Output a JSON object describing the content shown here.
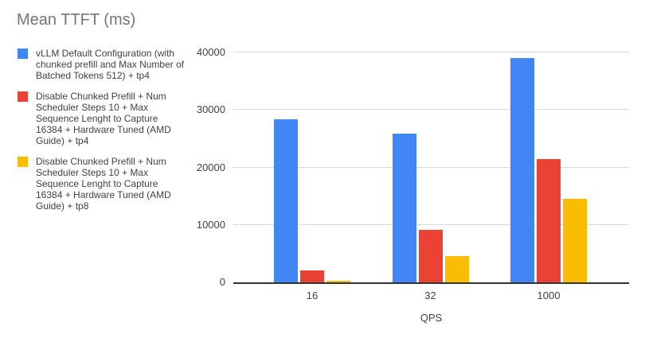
{
  "chart_data": {
    "type": "bar",
    "title": "Mean TTFT (ms)",
    "xlabel": "QPS",
    "ylabel": "",
    "categories": [
      "16",
      "32",
      "1000"
    ],
    "series": [
      {
        "name": "vLLM Default Configuration (with chunked prefill and Max Number of Batched Tokens 512) + tp4",
        "color": "#4285F4",
        "values": [
          28400,
          25900,
          39000
        ]
      },
      {
        "name": "Disable Chunked Prefill + Num Scheduler Steps 10 + Max Sequence Lenght to Capture 16384 + Hardware Tuned (AMD Guide) + tp4",
        "color": "#EA4335",
        "values": [
          2100,
          9200,
          21500
        ]
      },
      {
        "name": "Disable Chunked Prefill + Num Scheduler Steps 10 + Max Sequence Lenght to Capture 16384 + Hardware Tuned (AMD Guide) + tp8",
        "color": "#FBBC04",
        "values": [
          250,
          4600,
          14500
        ]
      }
    ],
    "ylim": [
      0,
      40000
    ],
    "yticks": [
      0,
      10000,
      20000,
      30000,
      40000
    ],
    "ytick_labels": [
      "0",
      "10000",
      "20000",
      "30000",
      "40000"
    ],
    "grid": true,
    "legend_position": "left"
  },
  "colors": {
    "title_text": "#757575",
    "axis_text": "#424242",
    "gridline": "#d9d9d9",
    "axis_line": "#333333",
    "background": "#ffffff"
  }
}
